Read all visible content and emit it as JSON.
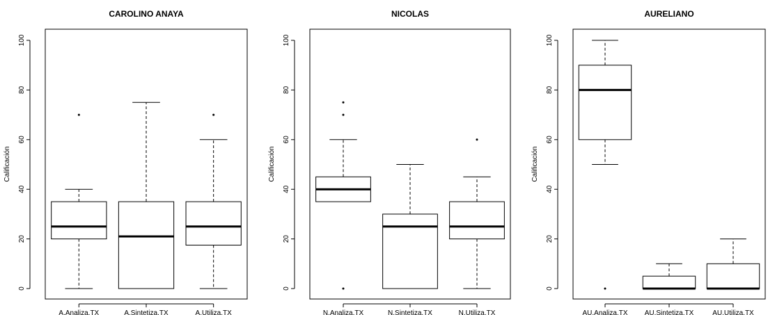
{
  "chart_data": [
    {
      "type": "box",
      "title": "CAROLINO ANAYA",
      "ylabel": "Calificación",
      "xlabel": "",
      "ylim": [
        0,
        100
      ],
      "yticks": [
        0,
        20,
        40,
        60,
        80,
        100
      ],
      "grid": false,
      "categories": [
        "A.Analiza.TX",
        "A.Sintetiza.TX",
        "A.Utiliza.TX"
      ],
      "boxes": [
        {
          "whisker_low": 0,
          "q1": 20,
          "median": 25,
          "q3": 35,
          "whisker_high": 40,
          "outliers": [
            70
          ]
        },
        {
          "whisker_low": 0,
          "q1": 0,
          "median": 21,
          "q3": 35,
          "whisker_high": 75,
          "outliers": []
        },
        {
          "whisker_low": 0,
          "q1": 17.5,
          "median": 25,
          "q3": 35,
          "whisker_high": 60,
          "outliers": [
            70
          ]
        }
      ]
    },
    {
      "type": "box",
      "title": "NICOLAS",
      "ylabel": "Calificación",
      "xlabel": "",
      "ylim": [
        0,
        100
      ],
      "yticks": [
        0,
        20,
        40,
        60,
        80,
        100
      ],
      "grid": false,
      "categories": [
        "N.Analiza.TX",
        "N.Sintetiza.TX",
        "N.Utiliza.TX"
      ],
      "boxes": [
        {
          "whisker_low": 35,
          "q1": 35,
          "median": 40,
          "q3": 45,
          "whisker_high": 60,
          "outliers": [
            0,
            70,
            75
          ]
        },
        {
          "whisker_low": 0,
          "q1": 0,
          "median": 25,
          "q3": 30,
          "whisker_high": 50,
          "outliers": []
        },
        {
          "whisker_low": 0,
          "q1": 20,
          "median": 25,
          "q3": 35,
          "whisker_high": 45,
          "outliers": [
            60
          ]
        }
      ]
    },
    {
      "type": "box",
      "title": "AURELIANO",
      "ylabel": "Calificación",
      "xlabel": "",
      "ylim": [
        0,
        100
      ],
      "yticks": [
        0,
        20,
        40,
        60,
        80,
        100
      ],
      "grid": false,
      "categories": [
        "AU.Analiza.TX",
        "AU.Sintetiza.TX",
        "AU.Utiliza.TX"
      ],
      "boxes": [
        {
          "whisker_low": 50,
          "q1": 60,
          "median": 80,
          "q3": 90,
          "whisker_high": 100,
          "outliers": [
            0
          ]
        },
        {
          "whisker_low": 0,
          "q1": 0,
          "median": 0,
          "q3": 5,
          "whisker_high": 10,
          "outliers": []
        },
        {
          "whisker_low": 0,
          "q1": 0,
          "median": 0,
          "q3": 10,
          "whisker_high": 20,
          "outliers": []
        }
      ]
    }
  ]
}
